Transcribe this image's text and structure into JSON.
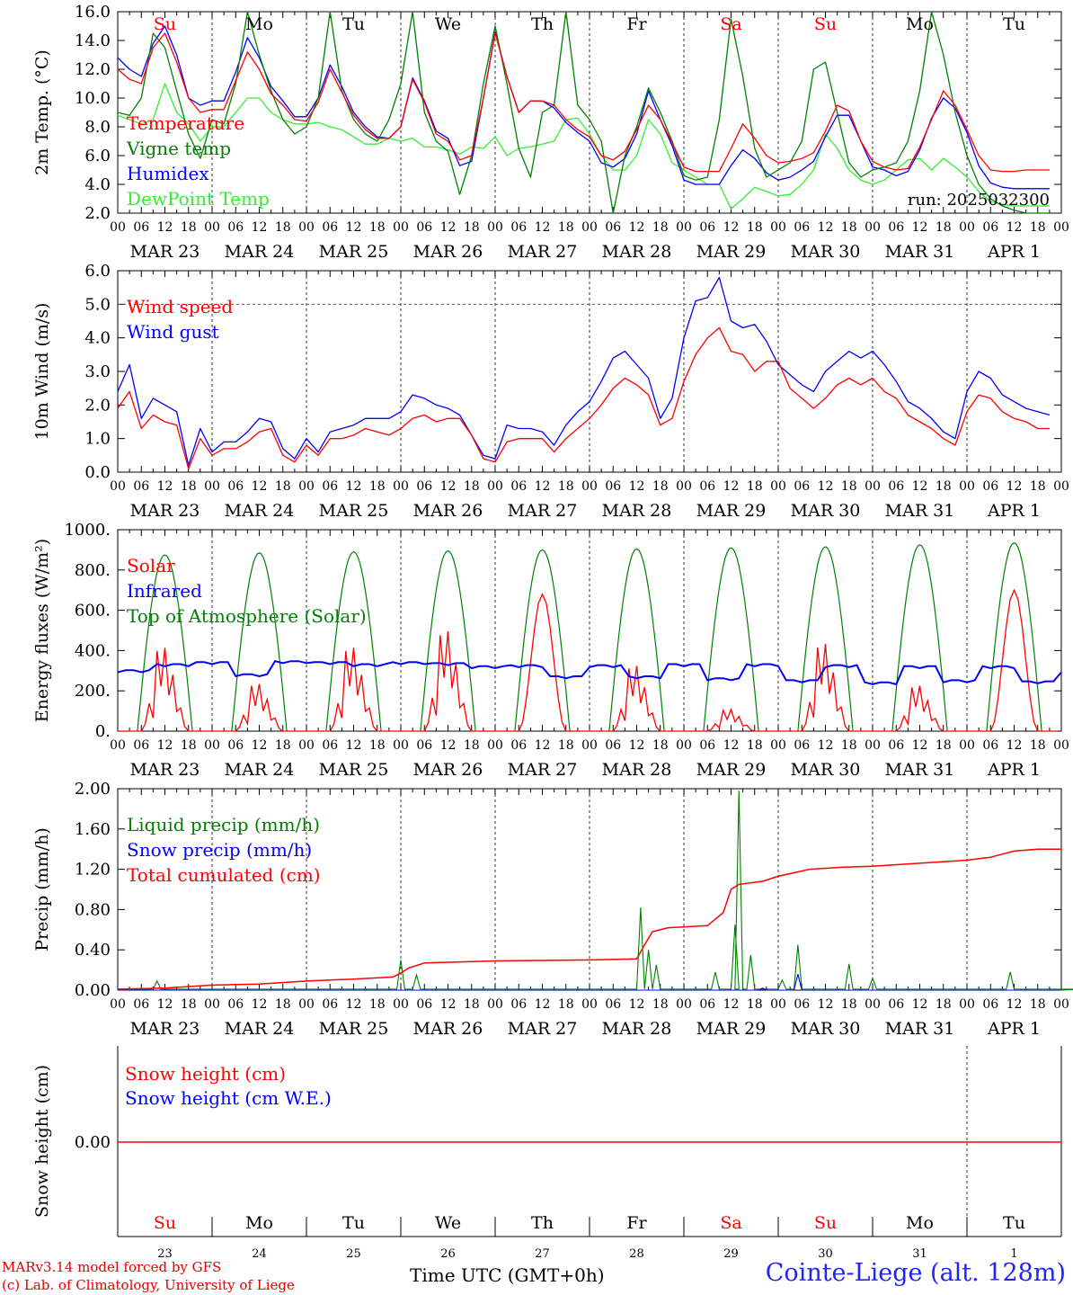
{
  "colors": {
    "red": "#ff0000",
    "green": "#008000",
    "blue": "#0000ff",
    "lightgreen": "#33ee33",
    "grid": "#555555"
  },
  "days": [
    "MAR 23",
    "MAR 24",
    "MAR 25",
    "MAR 26",
    "MAR 27",
    "MAR 28",
    "MAR 29",
    "MAR 30",
    "MAR 31",
    "APR  1"
  ],
  "hour_ticks": [
    "00",
    "06",
    "12",
    "18"
  ],
  "weekdays": [
    "Su",
    "Mo",
    "Tu",
    "We",
    "Th",
    "Fr",
    "Sa",
    "Su",
    "Mo",
    "Tu"
  ],
  "weekday_colors": [
    "red",
    "black",
    "black",
    "black",
    "black",
    "black",
    "red",
    "red",
    "black",
    "black"
  ],
  "day_numbers": [
    "23",
    "24",
    "25",
    "26",
    "27",
    "28",
    "29",
    "30",
    "31",
    "1"
  ],
  "footer": {
    "model": "MARv3.14 model forced by GFS",
    "lab": "(c) Lab. of Climatology, University of Liege",
    "time_axis": "Time UTC (GMT+0h)",
    "station": "Cointe-Liege (alt. 128m)"
  },
  "chart_data": [
    {
      "type": "line",
      "ylabel": "2m Temp. (°C)",
      "ylim": [
        2.0,
        16.0
      ],
      "yticks": [
        "2.0",
        "4.0",
        "6.0",
        "8.0",
        "10.0",
        "12.0",
        "14.0",
        "16.0"
      ],
      "annotation": "run: 2025032300",
      "legend": [
        {
          "name": "Temperature",
          "color": "red"
        },
        {
          "name": "Vigne temp",
          "color": "green"
        },
        {
          "name": "Humidex",
          "color": "blue"
        },
        {
          "name": "DewPoint Temp",
          "color": "lightgreen"
        }
      ],
      "x_hours": [
        0,
        3,
        6,
        9,
        12,
        15,
        18,
        21,
        24,
        27,
        30,
        33,
        36,
        39,
        42,
        45,
        48,
        51,
        54,
        57,
        60,
        63,
        66,
        69,
        72,
        75,
        78,
        81,
        84,
        87,
        90,
        93,
        96,
        99,
        102,
        105,
        108,
        111,
        114,
        117,
        120,
        123,
        126,
        129,
        132,
        135,
        138,
        141,
        144,
        147,
        150,
        153,
        156,
        159,
        162,
        165,
        168,
        171,
        174,
        177,
        180,
        183,
        186,
        189,
        192,
        195,
        198,
        201,
        204,
        207,
        210,
        213,
        216,
        219,
        222,
        225,
        228,
        231,
        234,
        237
      ],
      "series": [
        {
          "name": "Temperature",
          "color": "red",
          "values": [
            12.0,
            11.3,
            11.0,
            13.5,
            14.5,
            12.5,
            10.0,
            9.0,
            9.2,
            9.2,
            11.2,
            13.2,
            12.0,
            10.3,
            9.5,
            8.5,
            8.4,
            9.7,
            12.0,
            10.4,
            8.8,
            7.8,
            7.2,
            7.2,
            8.0,
            11.3,
            9.7,
            7.5,
            7.0,
            5.7,
            6.0,
            10.0,
            14.5,
            11.5,
            9.0,
            9.8,
            9.8,
            9.5,
            8.5,
            7.8,
            7.3,
            6.0,
            5.7,
            6.3,
            7.8,
            9.5,
            8.5,
            6.9,
            5.2,
            4.9,
            4.9,
            4.9,
            6.5,
            8.2,
            7.2,
            6.0,
            5.5,
            5.6,
            5.8,
            6.2,
            7.7,
            9.5,
            9.1,
            7.0,
            5.6,
            5.2,
            5.0,
            5.1,
            6.6,
            8.5,
            10.5,
            9.5,
            7.8,
            6.0,
            5.0,
            4.9,
            4.9,
            5.0,
            5.0,
            5.0
          ]
        },
        {
          "name": "Vigne temp",
          "color": "green",
          "values": [
            9.0,
            8.8,
            10.0,
            14.5,
            13.5,
            10.5,
            7.5,
            5.8,
            8.5,
            8.2,
            11.0,
            16.0,
            13.0,
            10.5,
            8.5,
            7.5,
            8.0,
            10.0,
            16.0,
            10.5,
            8.5,
            7.5,
            7.0,
            8.5,
            11.0,
            16.0,
            9.0,
            7.0,
            6.3,
            3.3,
            6.0,
            11.0,
            15.0,
            11.0,
            6.5,
            4.5,
            9.0,
            9.5,
            16.0,
            9.5,
            8.5,
            7.0,
            2.0,
            6.0,
            8.0,
            10.7,
            9.0,
            7.0,
            4.6,
            4.3,
            4.5,
            8.5,
            15.5,
            11.5,
            6.5,
            4.5,
            5.0,
            5.5,
            7.0,
            12.0,
            12.5,
            9.0,
            5.5,
            4.5,
            5.0,
            5.2,
            5.5,
            7.0,
            10.5,
            16.0,
            13.0,
            9.0,
            6.0,
            4.0,
            3.0,
            2.5,
            2.2,
            2.0,
            2.0,
            2.0
          ]
        },
        {
          "name": "Humidex",
          "color": "blue",
          "values": [
            12.8,
            12.0,
            11.5,
            13.8,
            15.0,
            13.0,
            10.0,
            9.5,
            9.8,
            9.8,
            11.8,
            14.2,
            12.8,
            10.8,
            9.8,
            8.7,
            8.7,
            10.0,
            12.3,
            10.8,
            9.0,
            8.0,
            7.3,
            7.2,
            8.0,
            11.4,
            9.8,
            7.7,
            7.2,
            5.3,
            5.6,
            10.0,
            14.6,
            11.5,
            9.0,
            9.8,
            9.8,
            9.3,
            8.3,
            7.6,
            7.0,
            5.5,
            5.2,
            5.8,
            7.5,
            10.5,
            8.5,
            6.7,
            4.3,
            4.0,
            4.0,
            4.0,
            5.3,
            6.4,
            5.8,
            4.8,
            4.3,
            4.5,
            5.0,
            5.6,
            7.3,
            8.8,
            8.8,
            7.0,
            5.2,
            5.0,
            4.6,
            4.9,
            6.4,
            8.6,
            10.0,
            9.3,
            7.6,
            5.3,
            4.1,
            3.8,
            3.7,
            3.7,
            3.7,
            3.7
          ]
        },
        {
          "name": "DewPoint Temp",
          "color": "lightgreen",
          "values": [
            8.8,
            8.5,
            8.2,
            8.5,
            11.0,
            9.0,
            8.2,
            7.0,
            8.0,
            8.0,
            9.0,
            10.0,
            10.0,
            9.0,
            8.5,
            8.2,
            8.2,
            8.3,
            8.0,
            7.8,
            7.3,
            6.8,
            6.8,
            7.2,
            7.0,
            7.2,
            6.6,
            6.6,
            6.4,
            6.1,
            6.6,
            6.5,
            7.3,
            6.0,
            6.5,
            6.6,
            6.8,
            7.0,
            8.5,
            8.6,
            7.5,
            6.0,
            5.0,
            5.0,
            6.0,
            8.5,
            7.5,
            5.5,
            5.0,
            4.5,
            4.0,
            4.0,
            2.3,
            3.0,
            3.8,
            3.5,
            3.2,
            3.3,
            4.0,
            5.0,
            7.5,
            6.5,
            5.0,
            4.3,
            4.0,
            4.3,
            5.0,
            5.7,
            5.8,
            5.0,
            5.8,
            5.2,
            4.5,
            3.5,
            2.8,
            2.6,
            2.5,
            2.5,
            2.5,
            2.5
          ]
        }
      ]
    },
    {
      "type": "line",
      "ylabel": "10m Wind (m/s)",
      "ylim": [
        0.0,
        6.0
      ],
      "yticks": [
        "0.0",
        "1.0",
        "2.0",
        "3.0",
        "4.0",
        "5.0",
        "6.0"
      ],
      "hline": 5.0,
      "legend": [
        {
          "name": "Wind speed",
          "color": "red"
        },
        {
          "name": "Wind gust",
          "color": "blue"
        }
      ],
      "x_hours": [
        0,
        3,
        6,
        9,
        12,
        15,
        18,
        21,
        24,
        27,
        30,
        33,
        36,
        39,
        42,
        45,
        48,
        51,
        54,
        57,
        60,
        63,
        66,
        69,
        72,
        75,
        78,
        81,
        84,
        87,
        90,
        93,
        96,
        99,
        102,
        105,
        108,
        111,
        114,
        117,
        120,
        123,
        126,
        129,
        132,
        135,
        138,
        141,
        144,
        147,
        150,
        153,
        156,
        159,
        162,
        165,
        168,
        171,
        174,
        177,
        180,
        183,
        186,
        189,
        192,
        195,
        198,
        201,
        204,
        207,
        210,
        213,
        216,
        219,
        222,
        225,
        228,
        231,
        234,
        237
      ],
      "series": [
        {
          "name": "Wind speed",
          "color": "red",
          "values": [
            1.9,
            2.4,
            1.3,
            1.7,
            1.5,
            1.4,
            0.1,
            1.0,
            0.5,
            0.7,
            0.7,
            0.9,
            1.2,
            1.3,
            0.5,
            0.3,
            0.8,
            0.5,
            1.0,
            1.0,
            1.1,
            1.3,
            1.2,
            1.1,
            1.3,
            1.6,
            1.7,
            1.5,
            1.6,
            1.6,
            1.1,
            0.4,
            0.3,
            0.9,
            1.0,
            1.0,
            1.0,
            0.6,
            1.0,
            1.3,
            1.6,
            2.0,
            2.5,
            2.8,
            2.6,
            2.3,
            1.4,
            1.6,
            2.7,
            3.5,
            4.0,
            4.3,
            3.6,
            3.5,
            3.0,
            3.3,
            3.3,
            2.5,
            2.2,
            1.9,
            2.2,
            2.6,
            2.8,
            2.6,
            2.8,
            2.4,
            2.2,
            1.7,
            1.5,
            1.3,
            1.0,
            0.8,
            1.8,
            2.3,
            2.2,
            1.8,
            1.6,
            1.5,
            1.3,
            1.3
          ]
        },
        {
          "name": "Wind gust",
          "color": "blue",
          "values": [
            2.4,
            3.2,
            1.6,
            2.2,
            2.0,
            1.8,
            0.2,
            1.3,
            0.6,
            0.9,
            0.9,
            1.2,
            1.6,
            1.5,
            0.7,
            0.4,
            1.0,
            0.6,
            1.2,
            1.3,
            1.4,
            1.6,
            1.6,
            1.6,
            1.8,
            2.3,
            2.2,
            2.0,
            1.9,
            1.7,
            1.1,
            0.5,
            0.4,
            1.4,
            1.3,
            1.3,
            1.2,
            0.8,
            1.4,
            1.8,
            2.1,
            2.7,
            3.4,
            3.6,
            3.2,
            2.8,
            1.6,
            2.2,
            4.0,
            5.1,
            5.2,
            5.8,
            4.5,
            4.3,
            4.4,
            3.9,
            3.2,
            2.9,
            2.6,
            2.4,
            3.0,
            3.3,
            3.6,
            3.4,
            3.6,
            3.2,
            2.7,
            2.1,
            1.9,
            1.6,
            1.2,
            1.0,
            2.4,
            3.0,
            2.8,
            2.3,
            2.1,
            1.9,
            1.8,
            1.7
          ]
        }
      ]
    },
    {
      "type": "line",
      "ylabel": "Energy fluxes (W/m²)",
      "ylim": [
        0,
        1000
      ],
      "yticks": [
        "0.",
        "200.",
        "400.",
        "600.",
        "800.",
        "1000."
      ],
      "legend": [
        {
          "name": "Solar",
          "color": "red"
        },
        {
          "name": "Infrared",
          "color": "blue"
        },
        {
          "name": "Top of Atmosphere (Solar)",
          "color": "green"
        }
      ],
      "toa_peaks": [
        875,
        885,
        890,
        895,
        900,
        905,
        910,
        915,
        925,
        935
      ],
      "solar_peaks_by_day": [
        460,
        260,
        460,
        550,
        680,
        360,
        120,
        480,
        250,
        700
      ],
      "infrared": {
        "name": "Infrared",
        "color": "blue",
        "base": 320
      }
    },
    {
      "type": "line",
      "ylabel": "Precip (mm/h)",
      "ylim": [
        0.0,
        2.0
      ],
      "yticks": [
        "0.00",
        "0.40",
        "0.80",
        "1.20",
        "1.60",
        "2.00"
      ],
      "legend": [
        {
          "name": "Liquid precip (mm/h)",
          "color": "green"
        },
        {
          "name": "Snow precip (mm/h)",
          "color": "blue"
        },
        {
          "name": "Total cumulated (cm)",
          "color": "red"
        }
      ],
      "x_hours": [
        0,
        12,
        24,
        36,
        48,
        60,
        70,
        72,
        74,
        78,
        96,
        120,
        132,
        134,
        136,
        140,
        150,
        154,
        156,
        158,
        164,
        168,
        176,
        184,
        192,
        204,
        216,
        222,
        228,
        234,
        240
      ],
      "series": [
        {
          "name": "Total cumulated (cm)",
          "color": "red",
          "values": [
            0.01,
            0.02,
            0.05,
            0.06,
            0.09,
            0.11,
            0.13,
            0.17,
            0.22,
            0.27,
            0.29,
            0.3,
            0.31,
            0.45,
            0.58,
            0.62,
            0.64,
            0.77,
            1.0,
            1.05,
            1.08,
            1.13,
            1.2,
            1.22,
            1.23,
            1.26,
            1.29,
            1.32,
            1.38,
            1.4,
            1.4
          ]
        }
      ],
      "liquid_peaks": [
        {
          "h": 10,
          "v": 0.09
        },
        {
          "h": 72,
          "v": 0.3
        },
        {
          "h": 76,
          "v": 0.15
        },
        {
          "h": 133,
          "v": 0.82
        },
        {
          "h": 135,
          "v": 0.4
        },
        {
          "h": 137,
          "v": 0.25
        },
        {
          "h": 152,
          "v": 0.18
        },
        {
          "h": 157,
          "v": 0.65
        },
        {
          "h": 158,
          "v": 1.98
        },
        {
          "h": 161,
          "v": 0.35
        },
        {
          "h": 173,
          "v": 0.45
        },
        {
          "h": 169,
          "v": 0.1
        },
        {
          "h": 186,
          "v": 0.26
        },
        {
          "h": 192,
          "v": 0.12
        },
        {
          "h": 245,
          "v": 0
        },
        {
          "h": 227,
          "v": 0.18
        }
      ],
      "snow_peaks": [
        {
          "h": 164,
          "v": 0.02
        },
        {
          "h": 173,
          "v": 0.16
        }
      ]
    },
    {
      "type": "line",
      "ylabel": "Snow height (cm)",
      "ytick": "0.00",
      "legend": [
        {
          "name": "Snow height (cm)",
          "color": "red"
        },
        {
          "name": "Snow height (cm W.E.)",
          "color": "blue"
        }
      ],
      "series": [
        {
          "name": "Snow height (cm)",
          "color": "red",
          "values": [
            0.0,
            0.0
          ]
        }
      ]
    }
  ]
}
